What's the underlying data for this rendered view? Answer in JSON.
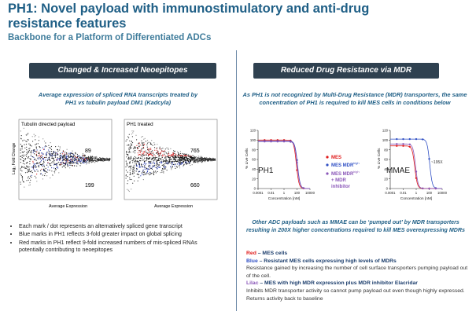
{
  "header": {
    "title": "PH1: Novel payload with immunostimulatory and anti-drug resistance features",
    "subtitle": "Backbone for a Platform of Differentiated ADCs"
  },
  "left_panel": {
    "banner": "Changed & Increased Neoepitopes",
    "caption_line1": "Average expression of spliced RNA transcripts treated by",
    "caption_line2": "PH1 vs tubulin payload DM1 (Kadcyla)",
    "plot1": {
      "title": "Tubulin directed payload",
      "upper_count": "89",
      "lower_count": "199"
    },
    "plot2": {
      "title": "PH1 treated",
      "upper_count": "765",
      "lower_count": "660"
    },
    "ylabel": "Log₂ Fold Change",
    "xlabel": "Average Expression",
    "bullets": [
      "Each mark / dot represents an alternatively spliced gene transcript",
      "Blue marks in PH1 reflects 3-fold greater impact on global splicing",
      "Red marks in PH1 reflect 9-fold increased numbers of mis-spliced RNAs potentially contributing to neoepitopes"
    ]
  },
  "right_panel": {
    "banner": "Reduced Drug Resistance via MDR",
    "caption_line1": "As PH1 is not recognized by Multi-Drug Resistance (MDR) transporters, the same",
    "caption_line2": "concentration of PH1 is required to kill MES cells in conditions below",
    "ylabel": "% Live Cells",
    "xlabel": "Concentration [nM]",
    "chart1_label": "PH1",
    "chart2_label": "MMAE",
    "chart2_annotation": "~195X",
    "legend": {
      "mes": "MES",
      "mes_mdr": "MES MDR",
      "high": "high",
      "mes_mdr_inhib": "MES MDR",
      "plus_mdr": "+ MDR",
      "inhibitor": "inhibitor"
    },
    "note_line1": "Other ADC payloads such as MMAE can be ‘pumped out’ by MDR transporters",
    "note_line2": "resulting in 200X higher concentrations required to kill MES overexpressing MDRs",
    "key": {
      "red_label": "Red",
      "red_text": " – MES cells",
      "blue_label": "Blue",
      "blue_text": " – Resistant MES cells expressing high levels of MDRs",
      "blue_desc": "Resistance gained by increasing the number of cell surface transporters pumping payload out of the cell.",
      "lilac_label": "Lilac",
      "lilac_text": " – MES with high MDR expression plus MDR inhibitor Elacridar",
      "lilac_desc": "Inhibits MDR transporter activity so cannot pump payload out even though highly expressed. Returns activity back to baseline"
    }
  },
  "chart_data": [
    {
      "type": "line",
      "title": "PH1",
      "xlabel": "Concentration [nM]",
      "ylabel": "% Live Cells",
      "x_scale": "log",
      "xlim": [
        0.0001,
        10000
      ],
      "ylim": [
        0,
        120
      ],
      "xticks": [
        "0.0001",
        "0.01",
        "1",
        "100",
        "10000"
      ],
      "yticks": [
        "0",
        "20",
        "40",
        "60",
        "80",
        "100",
        "120"
      ],
      "series": [
        {
          "name": "MES",
          "color": "#e01b1b",
          "top": 100,
          "ec50": 80
        },
        {
          "name": "MES MDR high",
          "color": "#2f4fc4",
          "top": 98,
          "ec50": 120
        },
        {
          "name": "MES MDR high + MDR inhibitor",
          "color": "#8a57b8",
          "top": 97,
          "ec50": 110
        }
      ]
    },
    {
      "type": "line",
      "title": "MMAE",
      "xlabel": "Concentration [nM]",
      "ylabel": "% Live Cells",
      "x_scale": "log",
      "xlim": [
        0.0001,
        10000
      ],
      "ylim": [
        0,
        120
      ],
      "xticks": [
        "0.0001",
        "0.01",
        "1",
        "100",
        "10000"
      ],
      "yticks": [
        "0",
        "20",
        "40",
        "60",
        "80",
        "100",
        "120"
      ],
      "annotation": "~195X",
      "series": [
        {
          "name": "MES",
          "color": "#e01b1b",
          "top": 88,
          "ec50": 0.6
        },
        {
          "name": "MES MDR high",
          "color": "#2f4fc4",
          "top": 102,
          "ec50": 120
        },
        {
          "name": "MES MDR high + MDR inhibitor",
          "color": "#8a57b8",
          "top": 92,
          "ec50": 0.8
        }
      ]
    }
  ]
}
